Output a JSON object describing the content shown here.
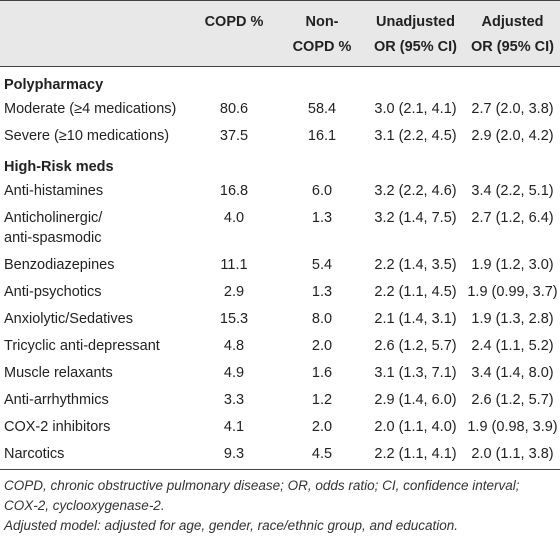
{
  "header": {
    "col1": "",
    "col2": "COPD %",
    "col3_line1": "Non-",
    "col3_line2": "COPD %",
    "col4_line1": "Unadjusted",
    "col4_line2": "OR (95% CI)",
    "col5_line1": "Adjusted",
    "col5_line2": "OR (95% CI)"
  },
  "sections": [
    {
      "title": "Polypharmacy",
      "rows": [
        {
          "label": "Moderate (≥4 medications)",
          "copd": "80.6",
          "noncopd": "58.4",
          "unadj": "3.0 (2.1, 4.1)",
          "adj": "2.7 (2.0, 3.8)"
        },
        {
          "label": "Severe (≥10 medications)",
          "copd": "37.5",
          "noncopd": "16.1",
          "unadj": "3.1 (2.2, 4.5)",
          "adj": "2.9 (2.0, 4.2)"
        }
      ]
    },
    {
      "title": "High-Risk meds",
      "rows": [
        {
          "label": "Anti-histamines",
          "copd": "16.8",
          "noncopd": "6.0",
          "unadj": "3.2 (2.2, 4.6)",
          "adj": "3.4 (2.2, 5.1)"
        },
        {
          "label": "Anticholinergic/",
          "label2": "anti-spasmodic",
          "copd": "4.0",
          "noncopd": "1.3",
          "unadj": "3.2 (1.4, 7.5)",
          "adj": "2.7 (1.2, 6.4)"
        },
        {
          "label": "Benzodiazepines",
          "copd": "11.1",
          "noncopd": "5.4",
          "unadj": "2.2 (1.4, 3.5)",
          "adj": "1.9 (1.2, 3.0)"
        },
        {
          "label": "Anti-psychotics",
          "copd": "2.9",
          "noncopd": "1.3",
          "unadj": "2.2 (1.1, 4.5)",
          "adj": "1.9 (0.99, 3.7)"
        },
        {
          "label": "Anxiolytic/Sedatives",
          "copd": "15.3",
          "noncopd": "8.0",
          "unadj": "2.1 (1.4, 3.1)",
          "adj": "1.9 (1.3, 2.8)"
        },
        {
          "label": "Tricyclic anti-depressant",
          "copd": "4.8",
          "noncopd": "2.0",
          "unadj": "2.6 (1.2, 5.7)",
          "adj": "2.4 (1.1, 5.2)"
        },
        {
          "label": "Muscle relaxants",
          "copd": "4.9",
          "noncopd": "1.6",
          "unadj": "3.1 (1.3, 7.1)",
          "adj": "3.4 (1.4, 8.0)"
        },
        {
          "label": "Anti-arrhythmics",
          "copd": "3.3",
          "noncopd": "1.2",
          "unadj": "2.9 (1.4, 6.0)",
          "adj": "2.6 (1.2, 5.7)"
        },
        {
          "label": "COX-2 inhibitors",
          "copd": "4.1",
          "noncopd": "2.0",
          "unadj": "2.0 (1.1, 4.0)",
          "adj": "1.9 (0.98, 3.9)"
        },
        {
          "label": "Narcotics",
          "copd": "9.3",
          "noncopd": "4.5",
          "unadj": "2.2 (1.1, 4.1)",
          "adj": "2.0 (1.1, 3.8)"
        }
      ]
    }
  ],
  "footnotes": {
    "abbreviations": "COPD, chronic obstructive pulmonary disease; OR, odds ratio; CI, confidence interval; COX-2, cyclooxygenase-2.",
    "adjusted": "Adjusted model: adjusted for age, gender, race/ethnic group, and education."
  }
}
